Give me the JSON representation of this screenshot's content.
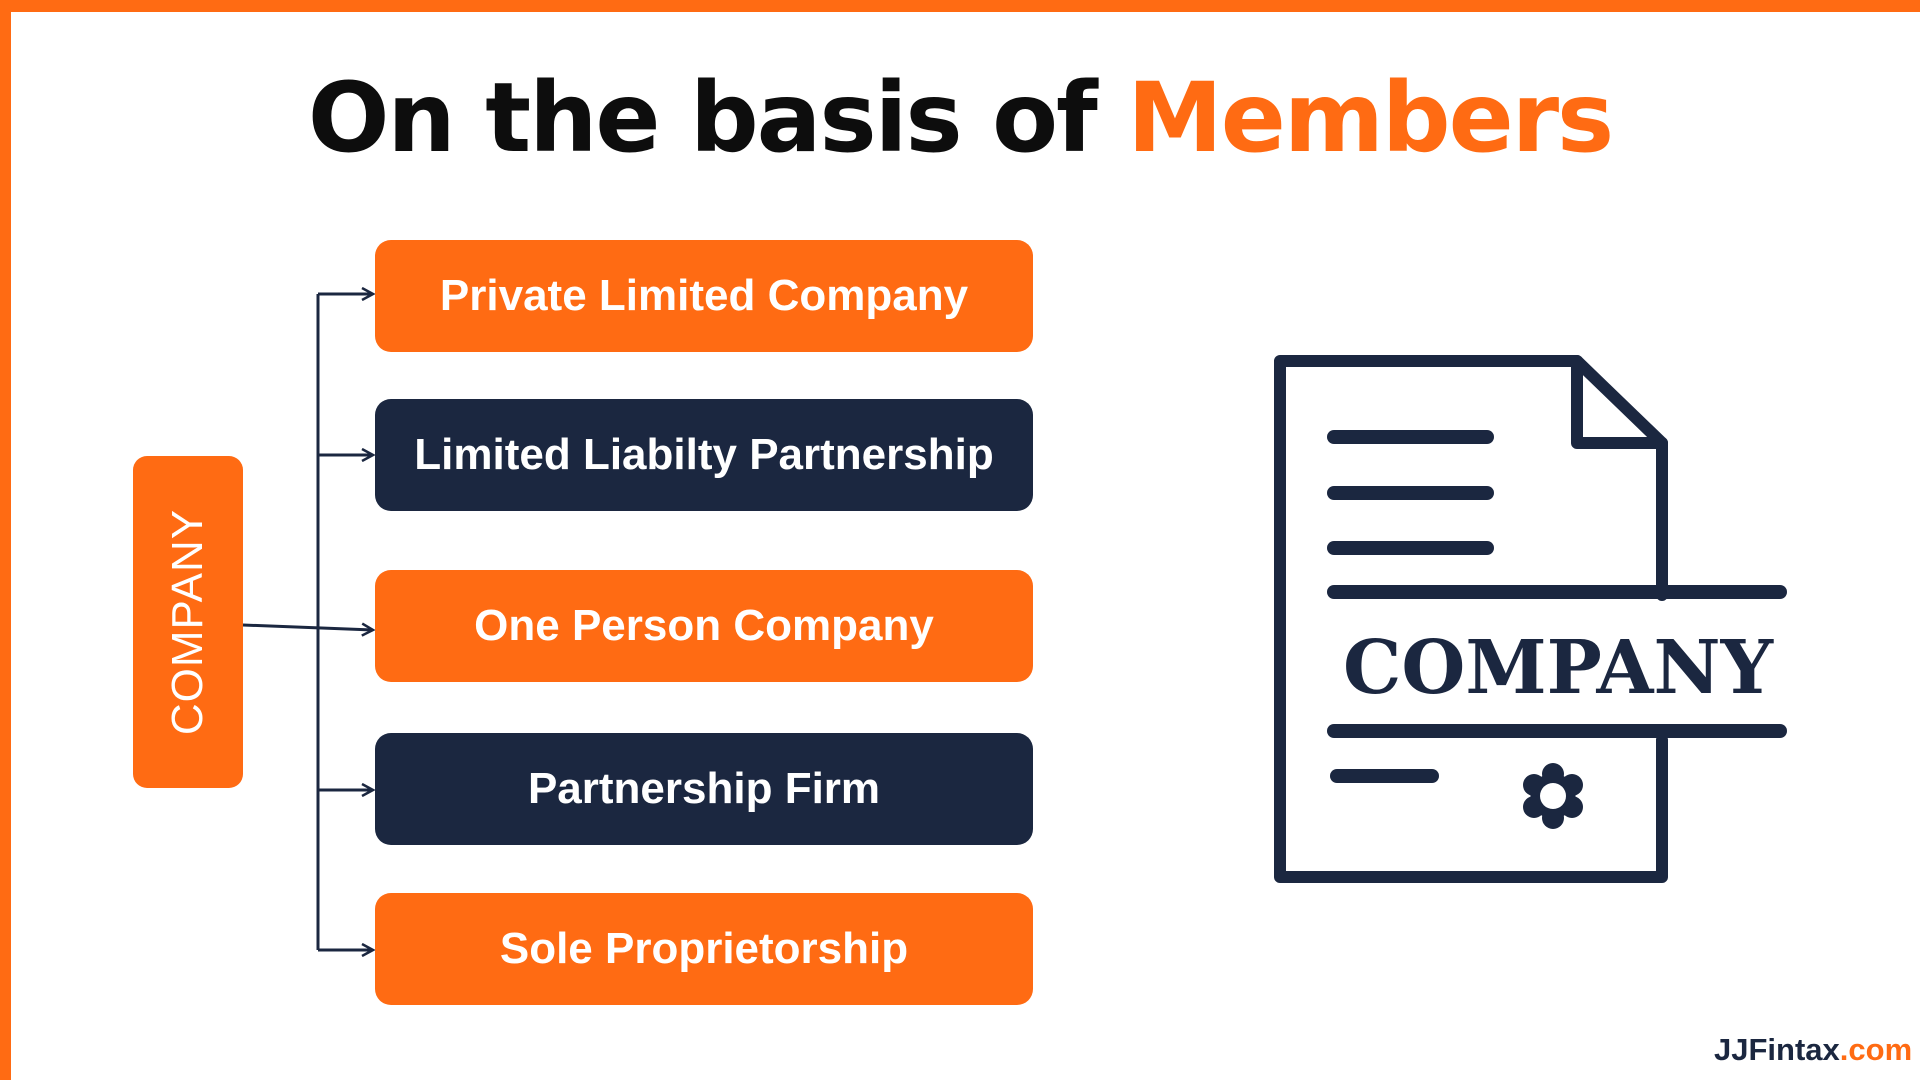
{
  "title": {
    "main": "On the basis of",
    "highlight": "Members"
  },
  "root": {
    "label": "COMPANY"
  },
  "types": [
    {
      "label": "Private Limited Company",
      "color": "#ff6b13"
    },
    {
      "label": "Limited Liabilty Partnership",
      "color": "#1b2740"
    },
    {
      "label": "One Person Company",
      "color": "#ff6b13"
    },
    {
      "label": "Partnership Firm",
      "color": "#1b2740"
    },
    {
      "label": "Sole Proprietorship",
      "color": "#ff6b13"
    }
  ],
  "illustration": {
    "icon": "company-document-icon",
    "label": "COMPANY"
  },
  "brand": {
    "name": "JJFintax",
    "domain": ".com"
  },
  "colors": {
    "accent": "#ff6b13",
    "navy": "#1b2740",
    "text": "#0d0d0d"
  }
}
